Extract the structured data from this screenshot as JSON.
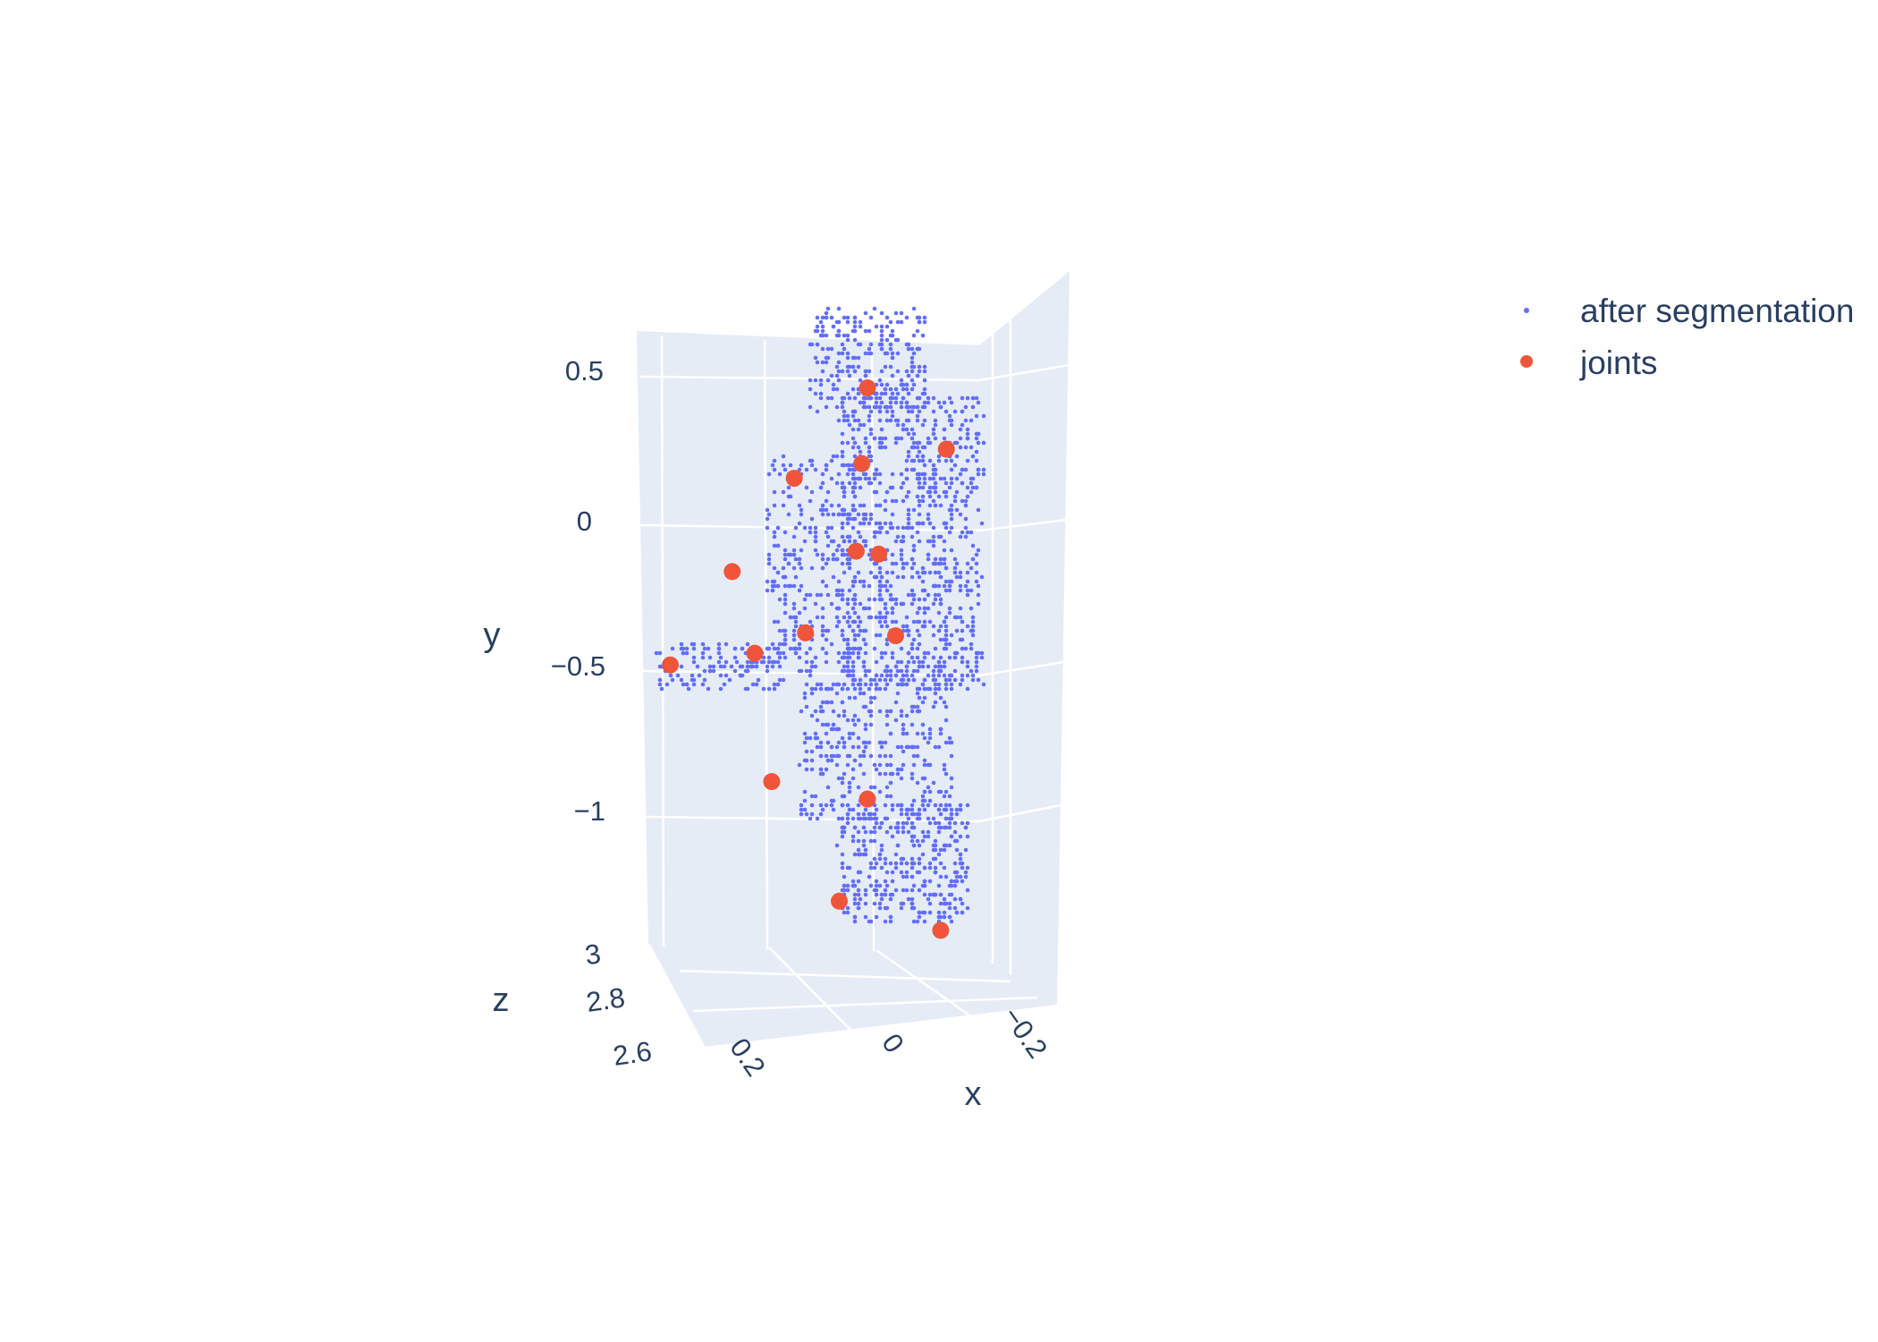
{
  "chart_data": {
    "type": "scatter",
    "subtype": "scatter3d",
    "title": "",
    "axes": {
      "x": {
        "title": "x",
        "ticks": [
          "0.2",
          "0",
          "−0.2"
        ],
        "tick_values": [
          0.2,
          0,
          -0.2
        ]
      },
      "y": {
        "title": "y",
        "ticks": [
          "0.5",
          "0",
          "−0.5",
          "−1"
        ],
        "tick_values": [
          0.5,
          0,
          -0.5,
          -1
        ]
      },
      "z": {
        "title": "z",
        "ticks": [
          "3",
          "2.8",
          "2.6"
        ],
        "tick_values": [
          3,
          2.8,
          2.6
        ]
      }
    },
    "grid": true,
    "legend_position": "top-right",
    "series": [
      {
        "name": "after segmentation",
        "color": "#636efa",
        "marker": "small-dot",
        "regions": [
          {
            "part": "head",
            "x": [
              -0.1,
              0.1
            ],
            "y": [
              0.4,
              0.75
            ]
          },
          {
            "part": "torso",
            "x": [
              -0.2,
              0.05
            ],
            "y": [
              -0.55,
              0.45
            ]
          },
          {
            "part": "left-arm",
            "x": [
              0.02,
              0.18
            ],
            "y": [
              -0.45,
              0.25
            ]
          },
          {
            "part": "forearm",
            "x": [
              0.15,
              0.38
            ],
            "y": [
              -0.55,
              -0.4
            ]
          },
          {
            "part": "pelvis",
            "x": [
              -0.15,
              0.12
            ],
            "y": [
              -1.0,
              -0.45
            ]
          },
          {
            "part": "legs",
            "x": [
              -0.18,
              0.05
            ],
            "y": [
              -1.35,
              -0.95
            ]
          }
        ]
      },
      {
        "name": "joints",
        "color": "#ef553b",
        "marker": "dot",
        "points": [
          {
            "x": 0.0,
            "y": 0.48
          },
          {
            "x": -0.14,
            "y": 0.27
          },
          {
            "x": 0.13,
            "y": 0.17
          },
          {
            "x": 0.01,
            "y": 0.22
          },
          {
            "x": 0.02,
            "y": -0.08
          },
          {
            "x": -0.02,
            "y": -0.09
          },
          {
            "x": 0.24,
            "y": -0.15
          },
          {
            "x": 0.11,
            "y": -0.36
          },
          {
            "x": -0.05,
            "y": -0.37
          },
          {
            "x": 0.2,
            "y": -0.43
          },
          {
            "x": 0.35,
            "y": -0.47
          },
          {
            "x": 0.17,
            "y": -0.87
          },
          {
            "x": 0.0,
            "y": -0.93
          },
          {
            "x": 0.05,
            "y": -1.28
          },
          {
            "x": -0.13,
            "y": -1.38
          }
        ]
      }
    ]
  }
}
